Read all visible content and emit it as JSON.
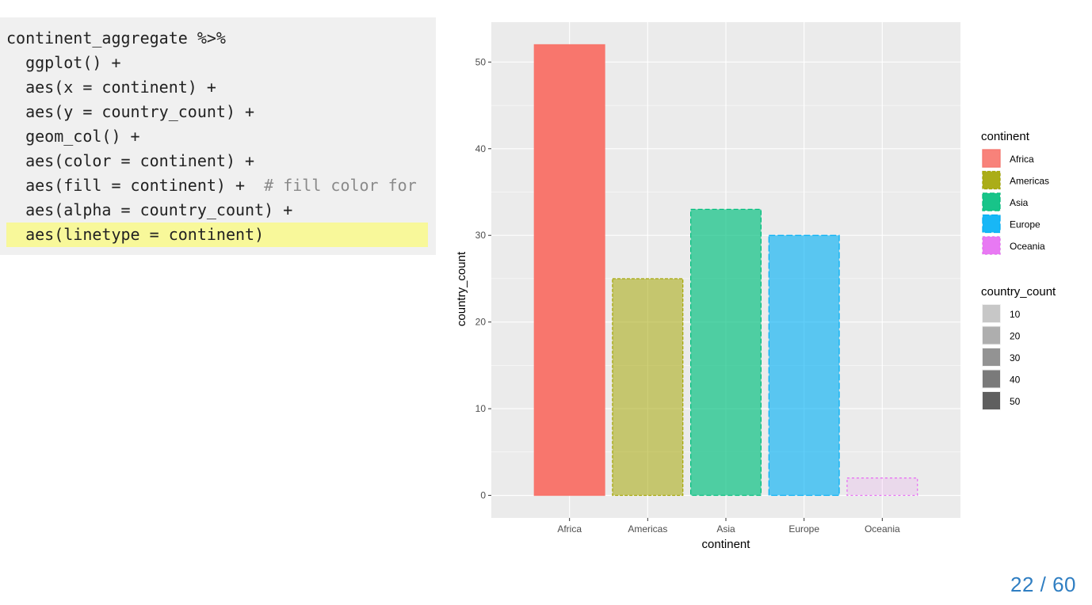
{
  "code": {
    "lines": [
      {
        "text": "continent_aggregate %>%",
        "comment": ""
      },
      {
        "text": "  ggplot() +",
        "comment": ""
      },
      {
        "text": "  aes(x = continent) +",
        "comment": ""
      },
      {
        "text": "  aes(y = country_count) +",
        "comment": ""
      },
      {
        "text": "  geom_col() +",
        "comment": ""
      },
      {
        "text": "  aes(color = continent) +",
        "comment": ""
      },
      {
        "text": "  aes(fill = continent) +  ",
        "comment": "# fill color for"
      },
      {
        "text": "  aes(alpha = country_count) +",
        "comment": ""
      },
      {
        "text": "  aes(linetype = continent)",
        "comment": ""
      }
    ],
    "highlighted_line": 8
  },
  "chart_data": {
    "type": "bar",
    "categories": [
      "Africa",
      "Americas",
      "Asia",
      "Europe",
      "Oceania"
    ],
    "values": [
      52,
      25,
      33,
      30,
      2
    ],
    "colors": [
      "#F8766D",
      "#A3A500",
      "#00BF7D",
      "#00B0F6",
      "#E76BF3"
    ],
    "xlabel": "continent",
    "ylabel": "country_count",
    "ylim": [
      -2.6,
      54.6
    ],
    "yticks": [
      0,
      10,
      20,
      30,
      40,
      50
    ],
    "background": "#EBEBEB",
    "grid": true,
    "legend_placement": "right",
    "legends": {
      "fill": {
        "title": "continent",
        "items": [
          "Africa",
          "Americas",
          "Asia",
          "Europe",
          "Oceania"
        ]
      },
      "alpha": {
        "title": "country_count",
        "items": [
          "10",
          "20",
          "30",
          "40",
          "50"
        ]
      }
    }
  },
  "slide": {
    "label": "22 / 60"
  }
}
